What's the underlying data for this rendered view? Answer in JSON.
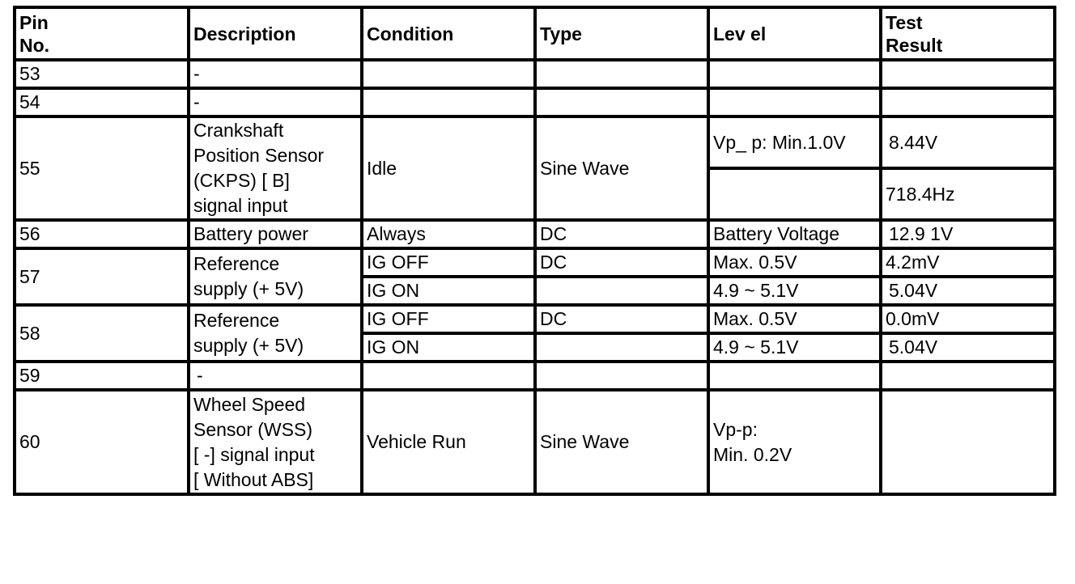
{
  "headers": {
    "pin": "Pin\nNo.",
    "pin_line1": "Pin",
    "pin_line2": "No.",
    "description": "Description",
    "condition": "Condition",
    "type": "Type",
    "level": "Lev el",
    "result_line1": "Test",
    "result_line2": "Result"
  },
  "rows": {
    "r53": {
      "pin": "53",
      "description": "-"
    },
    "r54": {
      "pin": "54",
      "description": "-"
    },
    "r55": {
      "pin": "55",
      "description": [
        "Crankshaft",
        "Position Sensor",
        "(CKPS) [  B]",
        "signal input"
      ],
      "condition": "Idle",
      "type": "Sine Wave",
      "level_1": "Vp_ p: Min.1.0V",
      "result_1": "8.44V",
      "level_2": "",
      "result_2": "718.4Hz"
    },
    "r56": {
      "pin": "56",
      "description": "Battery power",
      "condition": "Always",
      "type": "DC",
      "level": "Battery Voltage",
      "result": "12.9 1V"
    },
    "r57": {
      "pin": "57",
      "description": [
        "Reference",
        "supply (+ 5V)"
      ],
      "condition_1": "IG OFF",
      "type_1": "DC",
      "level_1": "Max. 0.5V",
      "result_1": "4.2mV",
      "condition_2": "IG ON",
      "type_2": "",
      "level_2": "4.9  ~ 5.1V",
      "result_2": "5.04V"
    },
    "r58": {
      "pin": "58",
      "description": [
        "Reference",
        "supply (+ 5V)"
      ],
      "condition_1": "IG OFF",
      "type_1": "DC",
      "level_1": "Max. 0.5V",
      "result_1": "0.0mV",
      "condition_2": "IG ON",
      "type_2": "",
      "level_2": "4.9  ~ 5.1V",
      "result_2": "5.04V"
    },
    "r59": {
      "pin": "59",
      "description": "-"
    },
    "r60": {
      "pin": "60",
      "description": [
        "Wheel Speed",
        "Sensor (WSS)",
        "[  -]   signal input",
        "[  Without ABS]"
      ],
      "condition": "Vehicle Run",
      "type": "Sine Wave",
      "level": [
        "Vp-p:",
        "Min. 0.2V"
      ],
      "result": ""
    }
  }
}
